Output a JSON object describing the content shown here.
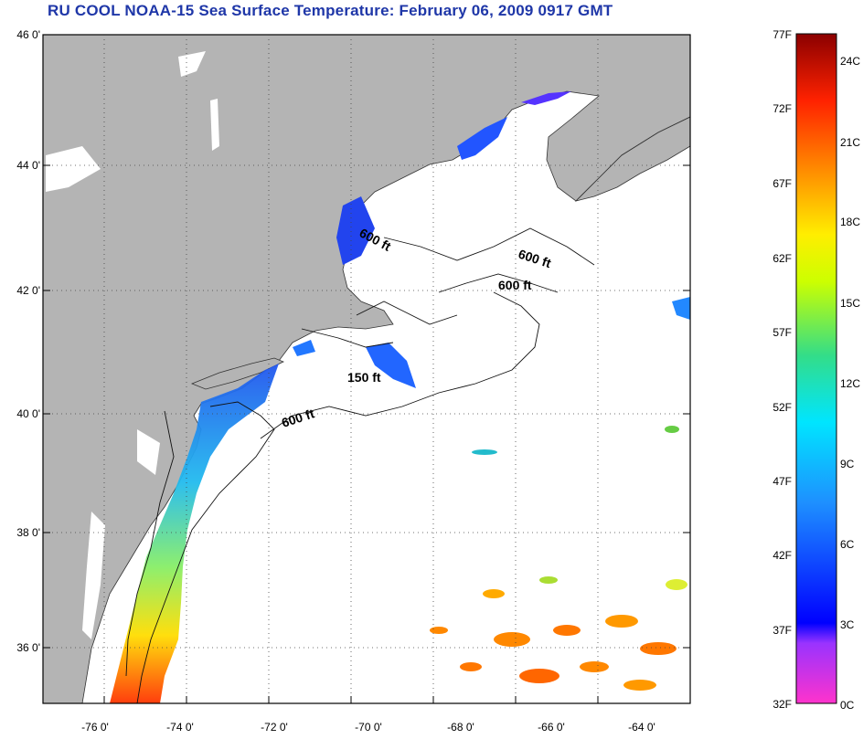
{
  "title": "RU COOL  NOAA-15  Sea Surface Temperature:  February 06, 2009 0917 GMT",
  "map": {
    "lat_labels": [
      "46 0'",
      "44 0'",
      "42 0'",
      "40 0'",
      "38 0'",
      "36 0'"
    ],
    "lon_labels": [
      "-76 0'",
      "-74 0'",
      "-72 0'",
      "-70 0'",
      "-68 0'",
      "-66 0'",
      "-64 0'"
    ],
    "contour_labels": [
      "600 ft",
      "600 ft",
      "600 ft",
      "150 ft",
      "600 ft"
    ],
    "land_color": "#b4b4b4",
    "ocean_color": "#ffffff"
  },
  "colorbar": {
    "fahrenheit_labels": [
      "77F",
      "72F",
      "67F",
      "62F",
      "57F",
      "52F",
      "47F",
      "42F",
      "37F",
      "32F"
    ],
    "celsius_labels": [
      "24C",
      "21C",
      "18C",
      "15C",
      "12C",
      "9C",
      "6C",
      "3C",
      "0C"
    ],
    "colors": [
      "#8b0000",
      "#ff0000",
      "#ff8c00",
      "#ffff00",
      "#66dd33",
      "#00ffff",
      "#1e90ff",
      "#0000ff",
      "#8a2be2",
      "#ff00ff"
    ]
  }
}
